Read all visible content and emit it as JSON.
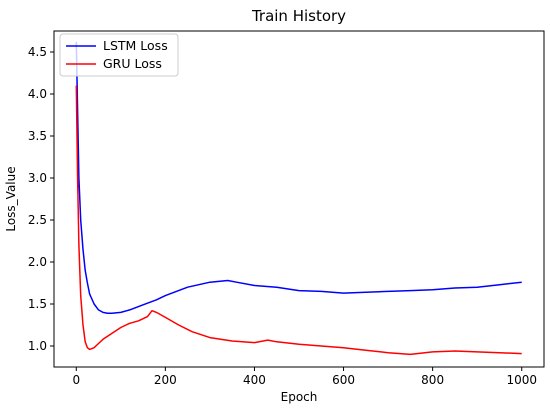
{
  "chart_data": {
    "type": "line",
    "title": "Train History",
    "xlabel": "Epoch",
    "ylabel": "Loss_Value",
    "xlim": [
      -50,
      1050
    ],
    "ylim": [
      0.75,
      4.75
    ],
    "xticks": [
      0,
      200,
      400,
      600,
      800,
      1000
    ],
    "xtick_labels": [
      "0",
      "200",
      "400",
      "600",
      "800",
      "1000"
    ],
    "yticks": [
      1.0,
      1.5,
      2.0,
      2.5,
      3.0,
      3.5,
      4.0,
      4.5
    ],
    "ytick_labels": [
      "1.0",
      "1.5",
      "2.0",
      "2.5",
      "3.0",
      "3.5",
      "4.0",
      "4.5"
    ],
    "grid": false,
    "legend_position": "top-left",
    "series": [
      {
        "name": "LSTM Loss",
        "color": "#0000ff",
        "x": [
          0,
          3,
          6,
          10,
          15,
          20,
          25,
          30,
          40,
          50,
          60,
          70,
          80,
          100,
          120,
          150,
          180,
          200,
          250,
          300,
          340,
          360,
          400,
          450,
          500,
          550,
          600,
          650,
          700,
          750,
          800,
          850,
          900,
          950,
          1000
        ],
        "y": [
          4.62,
          3.8,
          3.0,
          2.5,
          2.15,
          1.9,
          1.75,
          1.62,
          1.5,
          1.43,
          1.4,
          1.39,
          1.39,
          1.4,
          1.43,
          1.49,
          1.55,
          1.6,
          1.7,
          1.76,
          1.78,
          1.76,
          1.72,
          1.7,
          1.66,
          1.65,
          1.63,
          1.64,
          1.65,
          1.66,
          1.67,
          1.69,
          1.7,
          1.73,
          1.76
        ]
      },
      {
        "name": "GRU Loss",
        "color": "#ff0000",
        "x": [
          0,
          3,
          6,
          10,
          15,
          20,
          25,
          30,
          40,
          50,
          60,
          80,
          100,
          120,
          140,
          160,
          170,
          180,
          200,
          230,
          260,
          300,
          350,
          400,
          430,
          450,
          500,
          550,
          600,
          650,
          700,
          750,
          800,
          850,
          900,
          950,
          1000
        ],
        "y": [
          4.1,
          3.0,
          2.2,
          1.6,
          1.25,
          1.05,
          0.98,
          0.96,
          0.98,
          1.03,
          1.08,
          1.15,
          1.22,
          1.27,
          1.3,
          1.35,
          1.42,
          1.4,
          1.34,
          1.25,
          1.17,
          1.1,
          1.06,
          1.04,
          1.07,
          1.05,
          1.02,
          1.0,
          0.98,
          0.95,
          0.92,
          0.9,
          0.93,
          0.94,
          0.93,
          0.92,
          0.91
        ]
      }
    ]
  }
}
